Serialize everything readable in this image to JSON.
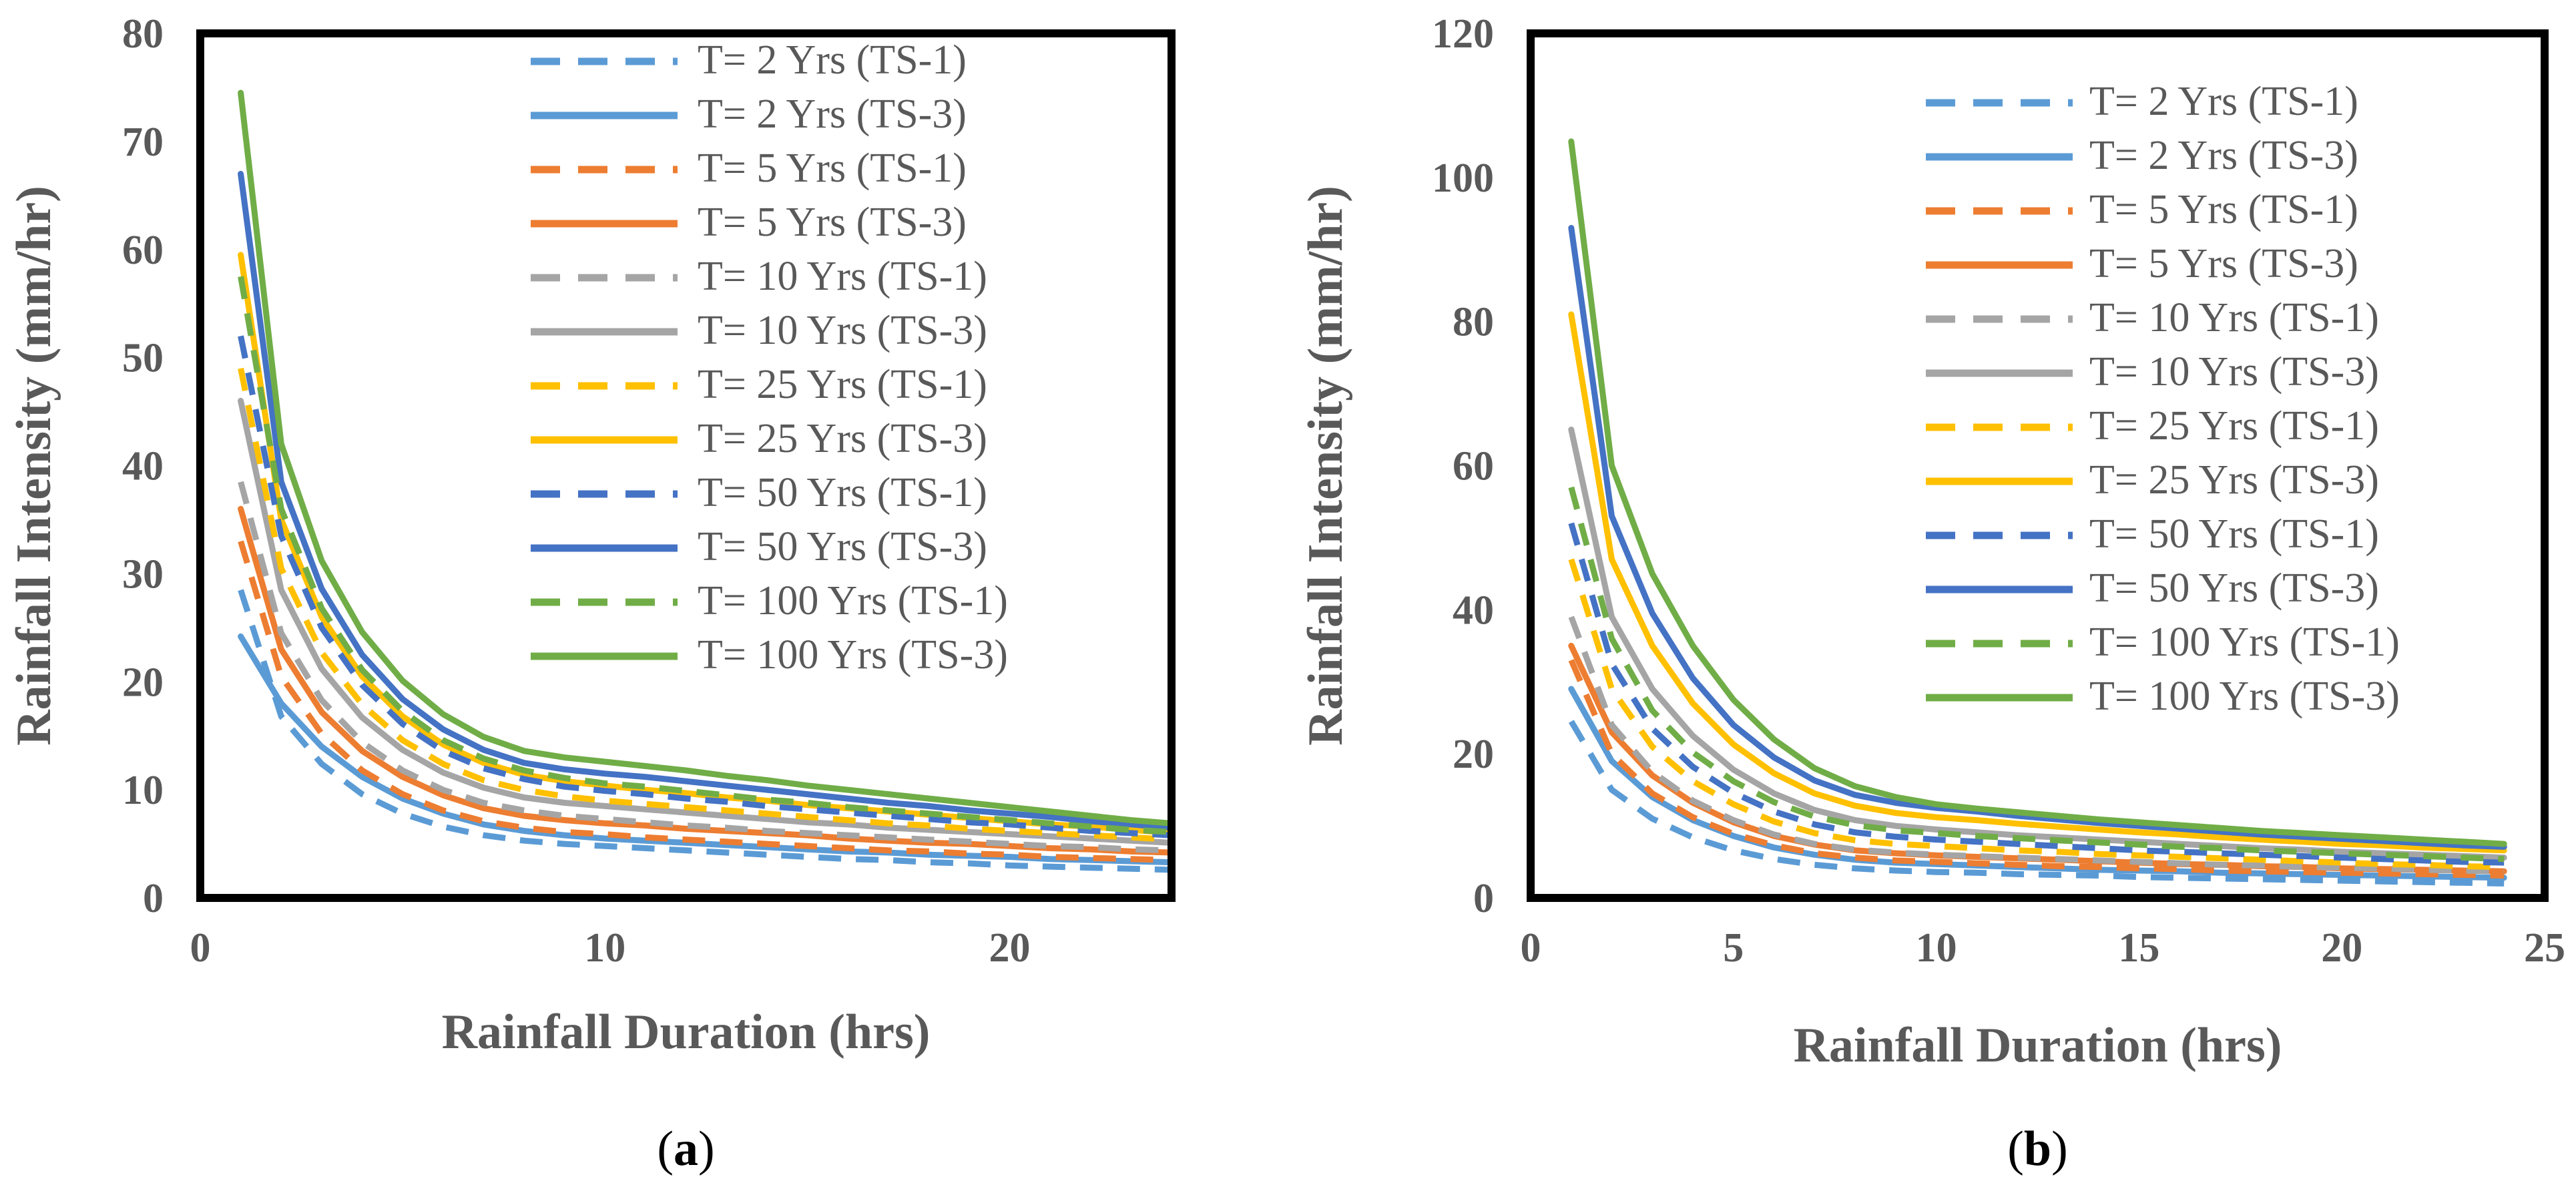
{
  "chart_data": [
    {
      "type": "line",
      "panel_label": "a",
      "xlabel": "Rainfall Duration (hrs)",
      "ylabel": "Rainfall Intensity (mm/hr)",
      "xlim": [
        0,
        24
      ],
      "ylim": [
        0,
        80
      ],
      "xticks": [
        0,
        10,
        20
      ],
      "yticks": [
        0,
        10,
        20,
        30,
        40,
        50,
        60,
        70,
        80
      ],
      "grid": false,
      "legend_position": "top-right",
      "x": [
        1,
        2,
        3,
        4,
        5,
        6,
        7,
        8,
        9,
        10,
        11,
        12,
        13,
        14,
        15,
        16,
        17,
        18,
        19,
        20,
        21,
        22,
        23,
        24
      ],
      "series": [
        {
          "name": "T= 2 Yrs (TS-1)",
          "color": "#5B9BD5",
          "dash": "dashed",
          "values": [
            28.5,
            16.8,
            12.4,
            9.6,
            7.8,
            6.6,
            5.8,
            5.3,
            5.0,
            4.8,
            4.6,
            4.4,
            4.2,
            4.0,
            3.8,
            3.6,
            3.5,
            3.3,
            3.2,
            3.0,
            2.9,
            2.8,
            2.7,
            2.6
          ]
        },
        {
          "name": "T= 2 Yrs (TS-3)",
          "color": "#5B9BD5",
          "dash": "solid",
          "values": [
            24.2,
            18.0,
            14.0,
            11.2,
            9.2,
            7.8,
            6.8,
            6.2,
            5.8,
            5.5,
            5.3,
            5.1,
            4.9,
            4.7,
            4.5,
            4.3,
            4.2,
            4.0,
            3.9,
            3.8,
            3.6,
            3.5,
            3.4,
            3.3
          ]
        },
        {
          "name": "T= 5 Yrs (TS-1)",
          "color": "#ED7D31",
          "dash": "dashed",
          "values": [
            33.0,
            20.5,
            15.2,
            11.8,
            9.6,
            8.1,
            7.1,
            6.5,
            6.1,
            5.9,
            5.6,
            5.4,
            5.2,
            5.0,
            4.8,
            4.6,
            4.4,
            4.3,
            4.1,
            4.0,
            3.8,
            3.7,
            3.6,
            3.5
          ]
        },
        {
          "name": "T= 5 Yrs (TS-3)",
          "color": "#ED7D31",
          "dash": "solid",
          "values": [
            36.0,
            23.0,
            17.2,
            13.6,
            11.2,
            9.5,
            8.3,
            7.6,
            7.2,
            6.9,
            6.7,
            6.4,
            6.2,
            6.0,
            5.8,
            5.5,
            5.3,
            5.1,
            5.0,
            4.8,
            4.6,
            4.5,
            4.3,
            4.2
          ]
        },
        {
          "name": "T= 10 Yrs (TS-1)",
          "color": "#A5A5A5",
          "dash": "dashed",
          "values": [
            38.5,
            24.5,
            18.3,
            14.4,
            11.8,
            10.0,
            8.8,
            8.1,
            7.6,
            7.3,
            7.0,
            6.7,
            6.5,
            6.2,
            6.0,
            5.8,
            5.6,
            5.4,
            5.2,
            5.0,
            4.8,
            4.7,
            4.5,
            4.4
          ]
        },
        {
          "name": "T= 10 Yrs (TS-3)",
          "color": "#A5A5A5",
          "dash": "solid",
          "values": [
            46.0,
            28.5,
            21.2,
            16.7,
            13.7,
            11.6,
            10.2,
            9.3,
            8.8,
            8.5,
            8.2,
            7.9,
            7.6,
            7.3,
            7.0,
            6.8,
            6.5,
            6.3,
            6.1,
            5.9,
            5.7,
            5.5,
            5.3,
            5.1
          ]
        },
        {
          "name": "T= 25 Yrs (TS-1)",
          "color": "#FFC000",
          "dash": "dashed",
          "values": [
            49.0,
            30.5,
            22.7,
            17.9,
            14.6,
            12.4,
            10.9,
            10.0,
            9.4,
            9.0,
            8.7,
            8.4,
            8.1,
            7.8,
            7.5,
            7.2,
            6.9,
            6.7,
            6.4,
            6.2,
            6.0,
            5.8,
            5.6,
            5.4
          ]
        },
        {
          "name": "T= 25 Yrs (TS-3)",
          "color": "#FFC000",
          "dash": "solid",
          "values": [
            59.5,
            35.0,
            26.0,
            20.5,
            16.8,
            14.2,
            12.5,
            11.4,
            10.8,
            10.4,
            10.0,
            9.7,
            9.3,
            9.0,
            8.6,
            8.3,
            8.0,
            7.7,
            7.4,
            7.1,
            6.8,
            6.6,
            6.3,
            6.0
          ]
        },
        {
          "name": "T= 50 Yrs (TS-1)",
          "color": "#4472C4",
          "dash": "dashed",
          "values": [
            52.0,
            33.5,
            25.0,
            19.7,
            16.1,
            13.6,
            12.0,
            11.0,
            10.3,
            9.9,
            9.6,
            9.2,
            8.9,
            8.5,
            8.2,
            7.9,
            7.6,
            7.3,
            7.0,
            6.8,
            6.5,
            6.2,
            6.0,
            5.8
          ]
        },
        {
          "name": "T= 50 Yrs (TS-3)",
          "color": "#4472C4",
          "dash": "solid",
          "values": [
            67.0,
            38.5,
            28.6,
            22.5,
            18.4,
            15.6,
            13.7,
            12.5,
            11.9,
            11.5,
            11.2,
            10.8,
            10.4,
            10.0,
            9.6,
            9.2,
            8.8,
            8.5,
            8.1,
            7.8,
            7.5,
            7.1,
            6.8,
            6.5
          ]
        },
        {
          "name": "T= 100 Yrs (TS-1)",
          "color": "#70AD47",
          "dash": "dashed",
          "values": [
            57.5,
            36.0,
            26.8,
            21.1,
            17.3,
            14.6,
            12.9,
            11.8,
            11.1,
            10.6,
            10.3,
            9.9,
            9.5,
            9.1,
            8.8,
            8.4,
            8.1,
            7.8,
            7.5,
            7.2,
            6.9,
            6.6,
            6.3,
            6.1
          ]
        },
        {
          "name": "T= 100 Yrs (TS-3)",
          "color": "#70AD47",
          "dash": "solid",
          "values": [
            74.5,
            42.0,
            31.2,
            24.6,
            20.1,
            17.0,
            14.9,
            13.6,
            13.0,
            12.6,
            12.2,
            11.8,
            11.3,
            10.9,
            10.4,
            10.0,
            9.6,
            9.2,
            8.8,
            8.4,
            8.0,
            7.6,
            7.2,
            6.9
          ]
        }
      ]
    },
    {
      "type": "line",
      "panel_label": "b",
      "xlabel": "Rainfall Duration (hrs)",
      "ylabel": "Rainfall Intensity (mm/hr)",
      "xlim": [
        0,
        25
      ],
      "ylim": [
        0,
        120
      ],
      "xticks": [
        0,
        5,
        10,
        15,
        20,
        25
      ],
      "yticks": [
        0,
        20,
        40,
        60,
        80,
        100,
        120
      ],
      "grid": false,
      "legend_position": "top-right",
      "x": [
        1,
        2,
        3,
        4,
        5,
        6,
        7,
        8,
        9,
        10,
        11,
        12,
        13,
        14,
        15,
        16,
        17,
        18,
        19,
        20,
        21,
        22,
        23,
        24
      ],
      "series": [
        {
          "name": "T= 2 Yrs (TS-1)",
          "color": "#5B9BD5",
          "dash": "dashed",
          "values": [
            24.5,
            15.0,
            11.0,
            8.4,
            6.6,
            5.4,
            4.6,
            4.1,
            3.8,
            3.6,
            3.5,
            3.3,
            3.2,
            3.1,
            2.9,
            2.8,
            2.7,
            2.6,
            2.5,
            2.4,
            2.3,
            2.2,
            2.1,
            2.0
          ]
        },
        {
          "name": "T= 2 Yrs (TS-3)",
          "color": "#5B9BD5",
          "dash": "solid",
          "values": [
            29.0,
            19.0,
            14.0,
            10.8,
            8.6,
            7.0,
            6.0,
            5.3,
            4.9,
            4.7,
            4.5,
            4.3,
            4.1,
            3.9,
            3.8,
            3.7,
            3.5,
            3.4,
            3.3,
            3.2,
            3.1,
            3.0,
            2.9,
            2.8
          ]
        },
        {
          "name": "T= 5 Yrs (TS-1)",
          "color": "#ED7D31",
          "dash": "dashed",
          "values": [
            33.0,
            20.0,
            14.5,
            11.2,
            8.9,
            7.3,
            6.2,
            5.6,
            5.2,
            5.0,
            4.8,
            4.6,
            4.4,
            4.3,
            4.1,
            4.0,
            3.8,
            3.7,
            3.6,
            3.5,
            3.4,
            3.3,
            3.2,
            3.1
          ]
        },
        {
          "name": "T= 5 Yrs (TS-3)",
          "color": "#ED7D31",
          "dash": "solid",
          "values": [
            35.0,
            23.0,
            17.0,
            13.2,
            10.5,
            8.6,
            7.4,
            6.6,
            6.2,
            5.9,
            5.7,
            5.5,
            5.3,
            5.1,
            4.9,
            4.7,
            4.6,
            4.4,
            4.3,
            4.1,
            4.0,
            3.9,
            3.8,
            3.7
          ]
        },
        {
          "name": "T= 10 Yrs (TS-1)",
          "color": "#A5A5A5",
          "dash": "dashed",
          "values": [
            39.0,
            24.0,
            17.5,
            13.5,
            10.8,
            8.8,
            7.5,
            6.7,
            6.3,
            6.0,
            5.8,
            5.6,
            5.4,
            5.2,
            5.0,
            4.8,
            4.6,
            4.5,
            4.3,
            4.2,
            4.1,
            3.9,
            3.8,
            3.7
          ]
        },
        {
          "name": "T= 10 Yrs (TS-3)",
          "color": "#A5A5A5",
          "dash": "solid",
          "values": [
            65.0,
            39.0,
            29.0,
            22.5,
            17.8,
            14.5,
            12.2,
            10.8,
            10.0,
            9.5,
            9.1,
            8.7,
            8.4,
            8.1,
            7.8,
            7.5,
            7.2,
            6.9,
            6.7,
            6.4,
            6.2,
            6.0,
            5.8,
            5.6
          ]
        },
        {
          "name": "T= 25 Yrs (TS-1)",
          "color": "#FFC000",
          "dash": "dashed",
          "values": [
            47.0,
            29.0,
            21.0,
            16.2,
            13.0,
            10.6,
            9.0,
            8.0,
            7.5,
            7.2,
            6.9,
            6.6,
            6.4,
            6.1,
            5.9,
            5.7,
            5.5,
            5.3,
            5.1,
            4.9,
            4.7,
            4.6,
            4.4,
            4.3
          ]
        },
        {
          "name": "T= 25 Yrs (TS-3)",
          "color": "#FFC000",
          "dash": "solid",
          "values": [
            81.0,
            47.0,
            35.0,
            27.0,
            21.3,
            17.3,
            14.5,
            12.8,
            11.8,
            11.2,
            10.8,
            10.3,
            9.9,
            9.5,
            9.1,
            8.8,
            8.4,
            8.1,
            7.8,
            7.5,
            7.3,
            7.0,
            6.8,
            6.6
          ]
        },
        {
          "name": "T= 50 Yrs (TS-1)",
          "color": "#4472C4",
          "dash": "dashed",
          "values": [
            52.0,
            32.5,
            23.5,
            18.2,
            14.6,
            12.0,
            10.2,
            9.1,
            8.5,
            8.1,
            7.8,
            7.5,
            7.2,
            6.9,
            6.6,
            6.4,
            6.2,
            6.0,
            5.8,
            5.6,
            5.4,
            5.2,
            5.0,
            4.9
          ]
        },
        {
          "name": "T= 50 Yrs (TS-3)",
          "color": "#4472C4",
          "dash": "solid",
          "values": [
            93.0,
            53.0,
            39.5,
            30.5,
            24.0,
            19.5,
            16.3,
            14.3,
            13.2,
            12.5,
            12.0,
            11.4,
            10.9,
            10.4,
            10.0,
            9.6,
            9.2,
            8.8,
            8.5,
            8.2,
            7.9,
            7.6,
            7.3,
            7.1
          ]
        },
        {
          "name": "T= 100 Yrs (TS-1)",
          "color": "#70AD47",
          "dash": "dashed",
          "values": [
            57.0,
            36.0,
            26.0,
            20.2,
            16.2,
            13.3,
            11.3,
            10.1,
            9.4,
            9.0,
            8.6,
            8.3,
            8.0,
            7.7,
            7.4,
            7.1,
            6.9,
            6.6,
            6.4,
            6.2,
            6.0,
            5.8,
            5.6,
            5.4
          ]
        },
        {
          "name": "T= 100 Yrs (TS-3)",
          "color": "#70AD47",
          "dash": "solid",
          "values": [
            105.0,
            60.0,
            45.0,
            35.0,
            27.5,
            22.0,
            18.0,
            15.5,
            14.0,
            13.0,
            12.4,
            11.9,
            11.4,
            10.9,
            10.5,
            10.1,
            9.7,
            9.3,
            9.0,
            8.7,
            8.4,
            8.1,
            7.8,
            7.5
          ]
        }
      ]
    }
  ]
}
